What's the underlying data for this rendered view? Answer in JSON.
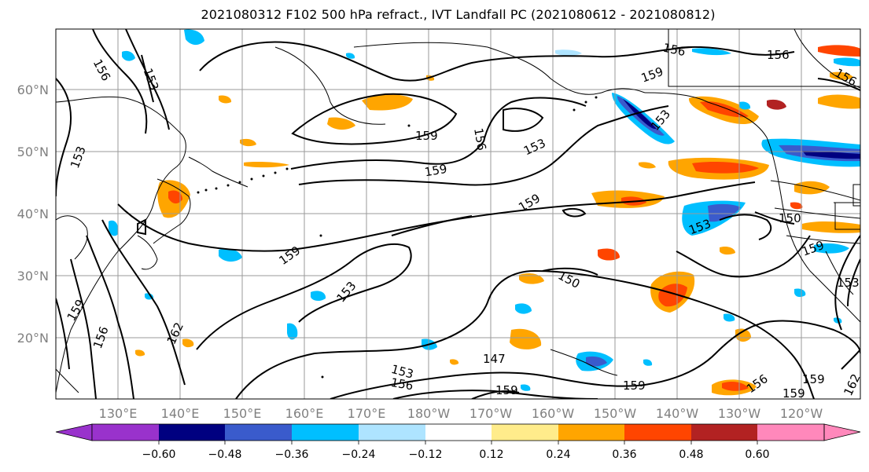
{
  "title": "2021080312 F102 500 hPa refract., IVT Landfall PC (2021080612 - 2021080812)",
  "map": {
    "lat_labels": [
      "60°N",
      "50°N",
      "40°N",
      "30°N",
      "20°N"
    ],
    "lon_labels": [
      "130°E",
      "140°E",
      "150°E",
      "160°E",
      "170°E",
      "180°W",
      "170°W",
      "160°W",
      "150°W",
      "140°W",
      "130°W",
      "120°W"
    ],
    "contour_labels": [
      "156",
      "153",
      "153",
      "159",
      "159",
      "156",
      "153",
      "159",
      "159",
      "156",
      "153",
      "159",
      "159",
      "156",
      "150",
      "153",
      "162",
      "147",
      "153",
      "156",
      "159",
      "159",
      "156",
      "159",
      "159",
      "162",
      "150",
      "159",
      "153",
      "156",
      "156",
      "153"
    ]
  },
  "colorbar": {
    "tick_labels": [
      "−0.60",
      "−0.48",
      "−0.36",
      "−0.24",
      "−0.12",
      "0.12",
      "0.24",
      "0.36",
      "0.48",
      "0.60"
    ],
    "colors": [
      "#9932cc",
      "#000080",
      "#3a5bcc",
      "#00bfff",
      "#aee4ff",
      "#ffffff",
      "#ffec8b",
      "#ffa500",
      "#ff4500",
      "#b22222",
      "#ff88bb"
    ]
  }
}
